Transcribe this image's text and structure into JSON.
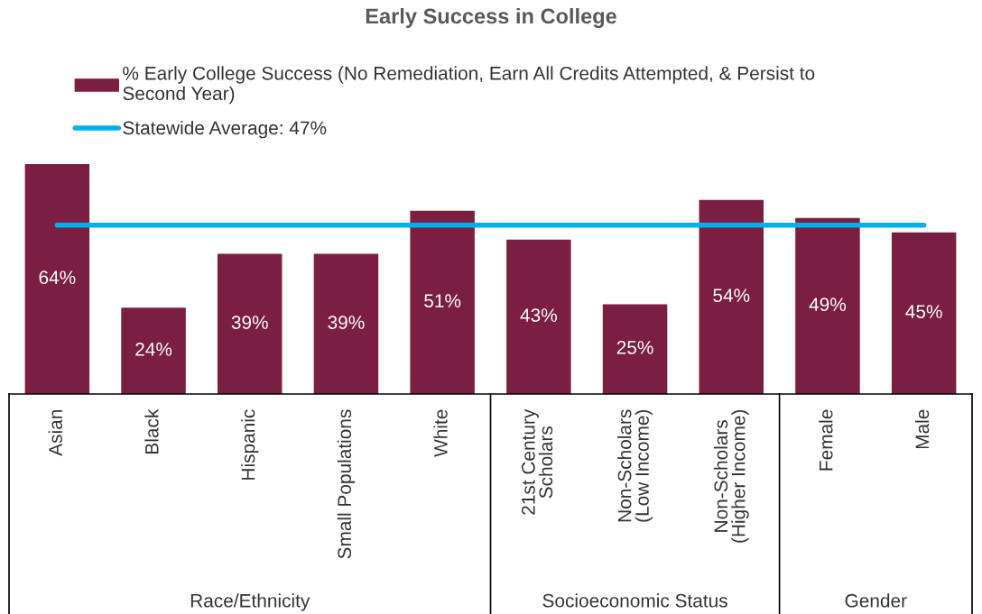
{
  "chart_data": {
    "type": "bar",
    "title": "Early Success in College",
    "categories": [
      "Asian",
      "Black",
      "Hispanic",
      "Small Populations",
      "White",
      "21st Century\nScholars",
      "Non-Scholars\n(Low Income)",
      "Non-Scholars\n(Higher Income)",
      "Female",
      "Male"
    ],
    "series": [
      {
        "name": "% Early College Success (No Remediation, Earn All Credits Attempted, & Persist to\nSecond Year)",
        "color": "#7b1f42",
        "values": [
          64,
          24,
          39,
          39,
          51,
          43,
          25,
          54,
          49,
          45
        ],
        "value_labels": [
          "64%",
          "24%",
          "39%",
          "39%",
          "51%",
          "43%",
          "25%",
          "54%",
          "49%",
          "45%"
        ]
      }
    ],
    "ref_lines": [
      {
        "axis": "y",
        "value": 47,
        "label": "Statewide Average: 47%",
        "color": "#00b0e8",
        "line_style": "solid"
      }
    ],
    "annotations": [
      "Race/Ethnicity",
      "Socioeconomic Status",
      "Gender"
    ],
    "legend": "top left",
    "grid": false,
    "tick_labels": "x"
  }
}
